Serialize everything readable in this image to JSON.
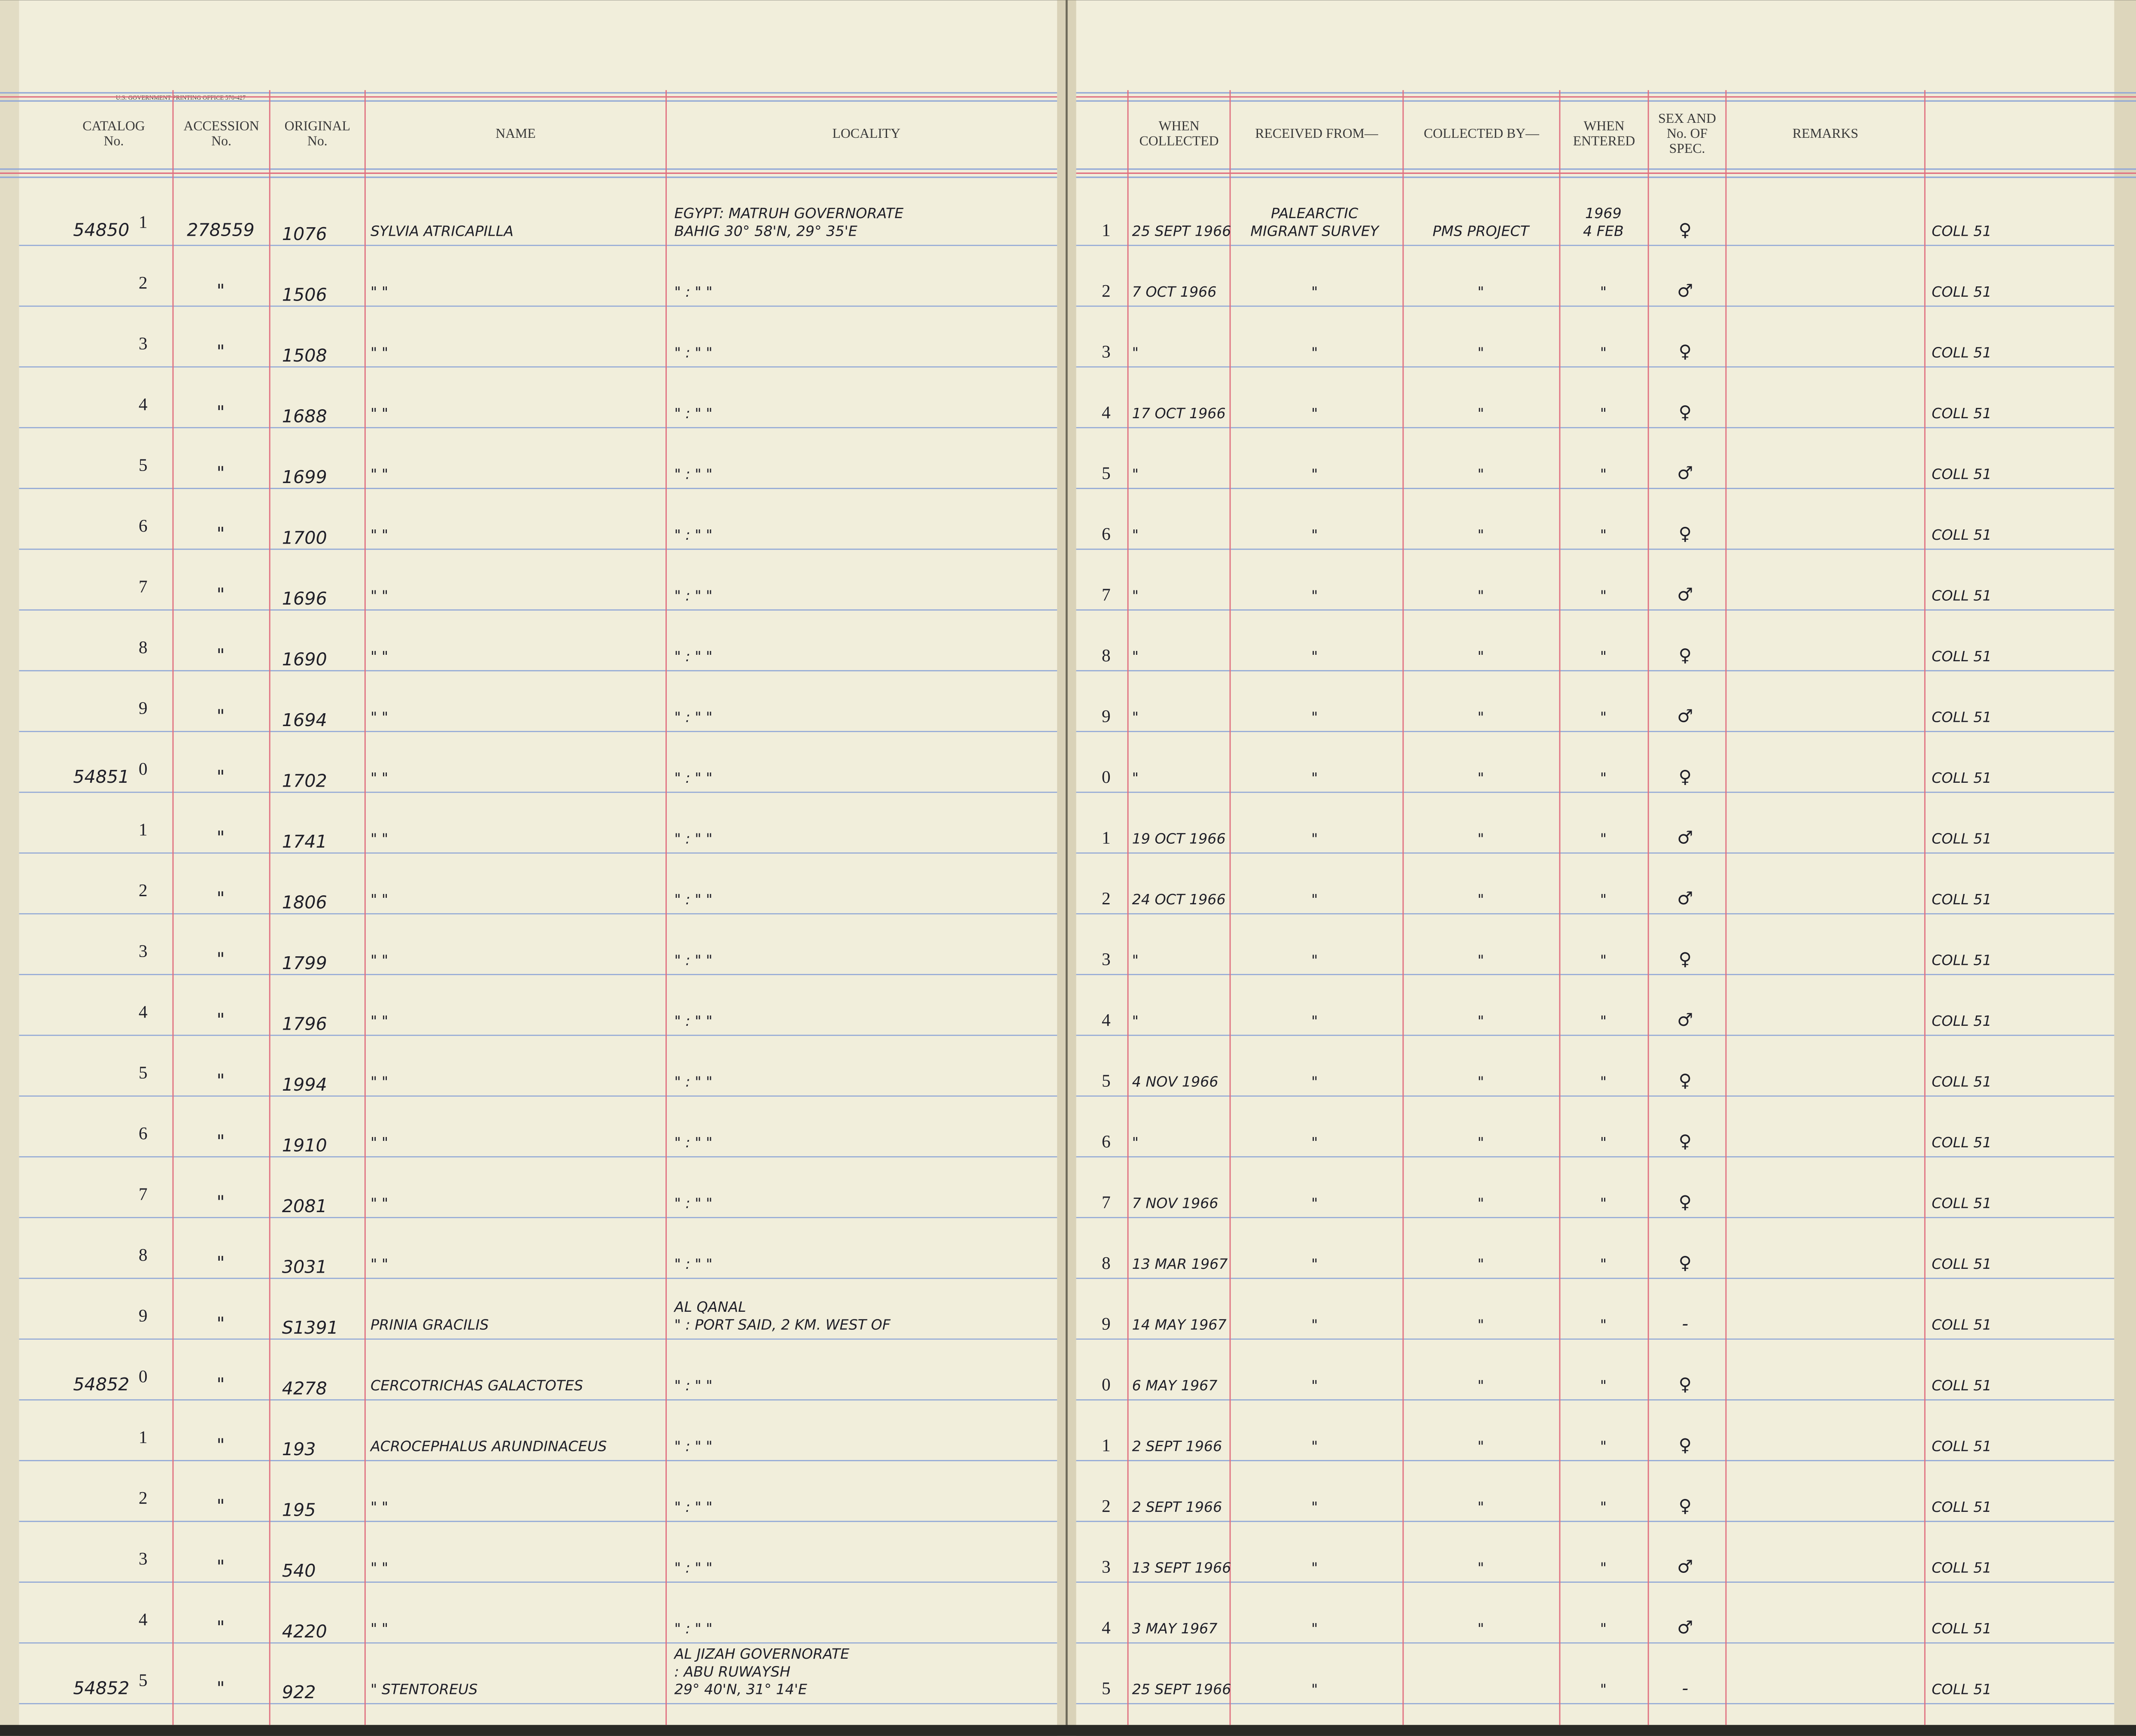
{
  "printer": "U.S. GOVERNMENT PRINTING OFFICE  570-427",
  "left_columns": [
    [
      "CATALOG",
      "No."
    ],
    [
      "ACCESSION",
      "No."
    ],
    [
      "ORIGINAL",
      "No."
    ],
    [
      "NAME"
    ],
    [
      "LOCALITY"
    ]
  ],
  "right_columns": [
    [
      "WHEN",
      "COLLECTED"
    ],
    [
      "RECEIVED FROM—"
    ],
    [
      "COLLECTED BY—"
    ],
    [
      "WHEN",
      "ENTERED"
    ],
    [
      "SEX AND",
      "No. OF",
      "SPEC."
    ],
    [
      "REMARKS"
    ]
  ],
  "rows": [
    [
      "54850",
      "1",
      "278559",
      "1076",
      "SYLVIA ATRICAPILLA",
      [
        "EGYPT: MATRUH GOVERNORATE",
        "BAHIG 30° 58'N, 29° 35'E"
      ],
      "1",
      "25 SEPT 1966",
      [
        "PALEARCTIC",
        "MIGRANT SURVEY"
      ],
      "PMS PROJECT",
      [
        "1969",
        "4 FEB"
      ],
      "♀",
      "COLL 51"
    ],
    [
      null,
      "2",
      "\"",
      "1506",
      "\"      \"",
      "\"   :   \"          \"",
      "2",
      "7 OCT 1966",
      "\"",
      "\"",
      "\"",
      "♂",
      "COLL 51"
    ],
    [
      null,
      "3",
      "\"",
      "1508",
      "\"      \"",
      "\"   :   \"          \"",
      "3",
      "\"",
      "\"",
      "\"",
      "\"",
      "♀",
      "COLL 51"
    ],
    [
      null,
      "4",
      "\"",
      "1688",
      "\"      \"",
      "\"   :   \"          \"",
      "4",
      "17 OCT 1966",
      "\"",
      "\"",
      "\"",
      "♀",
      "COLL 51"
    ],
    [
      null,
      "5",
      "\"",
      "1699",
      "\"      \"",
      "\"   :   \"          \"",
      "5",
      "\"",
      "\"",
      "\"",
      "\"",
      "♂",
      "COLL 51"
    ],
    [
      null,
      "6",
      "\"",
      "1700",
      "\"      \"",
      "\"   :   \"          \"",
      "6",
      "\"",
      "\"",
      "\"",
      "\"",
      "♀",
      "COLL 51"
    ],
    [
      null,
      "7",
      "\"",
      "1696",
      "\"      \"",
      "\"   :   \"          \"",
      "7",
      "\"",
      "\"",
      "\"",
      "\"",
      "♂",
      "COLL 51"
    ],
    [
      null,
      "8",
      "\"",
      "1690",
      "\"      \"",
      "\"   :   \"          \"",
      "8",
      "\"",
      "\"",
      "\"",
      "\"",
      "♀",
      "COLL 51"
    ],
    [
      null,
      "9",
      "\"",
      "1694",
      "\"      \"",
      "\"   :   \"          \"",
      "9",
      "\"",
      "\"",
      "\"",
      "\"",
      "♂",
      "COLL 51"
    ],
    [
      "54851",
      "0",
      "\"",
      "1702",
      "\"      \"",
      "\"   :   \"          \"",
      "0",
      "\"",
      "\"",
      "\"",
      "\"",
      "♀",
      "COLL 51"
    ],
    [
      null,
      "1",
      "\"",
      "1741",
      "\"      \"",
      "\"   :   \"          \"",
      "1",
      "19 OCT 1966",
      "\"",
      "\"",
      "\"",
      "♂",
      "COLL 51"
    ],
    [
      null,
      "2",
      "\"",
      "1806",
      "\"      \"",
      "\"   :   \"          \"",
      "2",
      "24 OCT 1966",
      "\"",
      "\"",
      "\"",
      "♂",
      "COLL 51"
    ],
    [
      null,
      "3",
      "\"",
      "1799",
      "\"      \"",
      "\"   :   \"          \"",
      "3",
      "\"",
      "\"",
      "\"",
      "\"",
      "♀",
      "COLL 51"
    ],
    [
      null,
      "4",
      "\"",
      "1796",
      "\"      \"",
      "\"   :   \"          \"",
      "4",
      "\"",
      "\"",
      "\"",
      "\"",
      "♂",
      "COLL 51"
    ],
    [
      null,
      "5",
      "\"",
      "1994",
      "\"      \"",
      "\"   :   \"          \"",
      "5",
      "4 NOV 1966",
      "\"",
      "\"",
      "\"",
      "♀",
      "COLL 51"
    ],
    [
      null,
      "6",
      "\"",
      "1910",
      "\"      \"",
      "\"   :   \"          \"",
      "6",
      "\"",
      "\"",
      "\"",
      "\"",
      "♀",
      "COLL 51"
    ],
    [
      null,
      "7",
      "\"",
      "2081",
      "\"      \"",
      "\"   :   \"          \"",
      "7",
      "7 NOV 1966",
      "\"",
      "\"",
      "\"",
      "♀",
      "COLL 51"
    ],
    [
      null,
      "8",
      "\"",
      "3031",
      "\"      \"",
      "\"   :   \"          \"",
      "8",
      "13 MAR 1967",
      "\"",
      "\"",
      "\"",
      "♀",
      "COLL 51"
    ],
    [
      null,
      "9",
      "\"",
      "S1391",
      "PRINIA GRACILIS",
      [
        "AL QANAL",
        "\"  : PORT SAID, 2 KM. WEST OF"
      ],
      "9",
      "14 MAY 1967",
      "\"",
      "\"",
      "\"",
      "-",
      "COLL 51"
    ],
    [
      "54852",
      "0",
      "\"",
      "4278",
      "CERCOTRICHAS GALACTOTES",
      "\"   :   \"          \"",
      "0",
      "6 MAY 1967",
      "\"",
      "\"",
      "\"",
      "♀",
      "COLL 51"
    ],
    [
      null,
      "1",
      "\"",
      "193",
      "ACROCEPHALUS ARUNDINACEUS",
      "\"   :   \"          \"",
      "1",
      "2 SEPT 1966",
      "\"",
      "\"",
      "\"",
      "♀",
      "COLL 51"
    ],
    [
      null,
      "2",
      "\"",
      "195",
      "\"      \"",
      "\"   :   \"          \"",
      "2",
      "2 SEPT 1966",
      "\"",
      "\"",
      "\"",
      "♀",
      "COLL 51"
    ],
    [
      null,
      "3",
      "\"",
      "540",
      "\"      \"",
      "\"   :   \"          \"",
      "3",
      "13 SEPT 1966",
      "\"",
      "\"",
      "\"",
      "♂",
      "COLL 51"
    ],
    [
      null,
      "4",
      "\"",
      "4220",
      "\"      \"",
      "\"   :   \"          \"",
      "4",
      "3 MAY 1967",
      "\"",
      "\"",
      "\"",
      "♂",
      "COLL 51"
    ],
    [
      "54852",
      "5",
      "\"",
      "922",
      "\"      STENTOREUS",
      [
        "AL JIZAH GOVERNORATE",
        ": ABU RUWAYSH",
        "29° 40'N, 31° 14'E"
      ],
      "5",
      "25 SEPT 1966",
      "\"",
      null,
      "\"",
      "-",
      "COLL 51"
    ]
  ]
}
